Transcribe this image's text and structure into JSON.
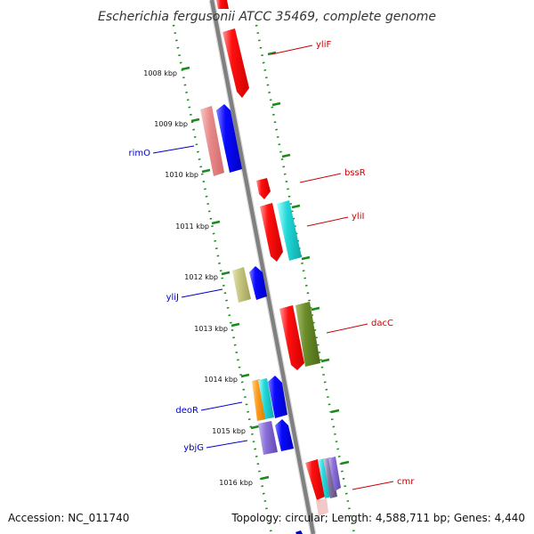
{
  "title": "Escherichia fergusonii ATCC 35469, complete genome",
  "footer": {
    "accession": "Accession: NC_011740",
    "summary": "Topology: circular; Length: 4,588,711 bp; Genes: 4,440"
  },
  "ticks": [
    "1008 kbp",
    "1009 kbp",
    "1010 kbp",
    "1011 kbp",
    "1012 kbp",
    "1013 kbp",
    "1014 kbp",
    "1015 kbp",
    "1016 kbp"
  ],
  "genes": [
    {
      "name": "yliF",
      "strand": "forward",
      "color": "#cc0000"
    },
    {
      "name": "rimO",
      "strand": "reverse",
      "color": "#0000cc"
    },
    {
      "name": "bssR",
      "strand": "forward",
      "color": "#cc0000"
    },
    {
      "name": "yliI",
      "strand": "forward",
      "color": "#cc0000"
    },
    {
      "name": "yliJ",
      "strand": "reverse",
      "color": "#0000cc"
    },
    {
      "name": "dacC",
      "strand": "forward",
      "color": "#cc0000"
    },
    {
      "name": "deoR",
      "strand": "reverse",
      "color": "#0000cc"
    },
    {
      "name": "ybjG",
      "strand": "reverse",
      "color": "#0000cc"
    },
    {
      "name": "cmr",
      "strand": "forward",
      "color": "#cc0000"
    }
  ],
  "colors": {
    "backbone": "#808080",
    "tick": "#1a8a1a",
    "forward_feature": "#ff0000",
    "reverse_feature": "#0000ff"
  }
}
